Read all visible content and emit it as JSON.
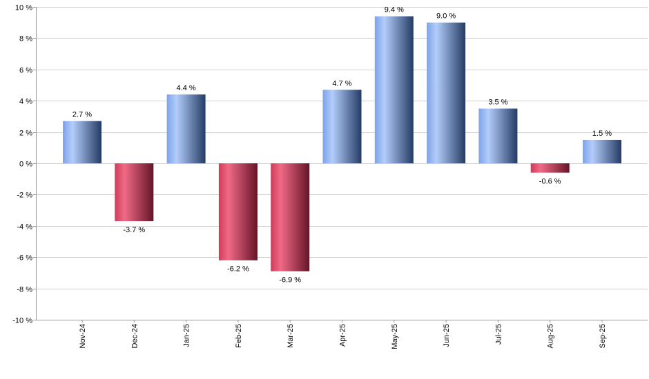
{
  "chart_data": {
    "type": "bar",
    "title": "",
    "xlabel": "",
    "ylabel": "",
    "categories": [
      "Nov-24",
      "Dec-24",
      "Jan-25",
      "Feb-25",
      "Mar-25",
      "Apr-25",
      "May-25",
      "Jun-25",
      "Jul-25",
      "Aug-25",
      "Sep-25"
    ],
    "values": [
      2.7,
      -3.7,
      4.4,
      -6.2,
      -6.9,
      4.7,
      9.4,
      9.0,
      3.5,
      -0.6,
      1.5
    ],
    "value_labels": [
      "2.7 %",
      "-3.7 %",
      "4.4 %",
      "-6.2 %",
      "-6.9 %",
      "4.7 %",
      "9.4 %",
      "9.0 %",
      "3.5 %",
      "-0.6 %",
      "1.5 %"
    ],
    "ylim": [
      -10,
      10
    ],
    "y_ticks": [
      10,
      8,
      6,
      4,
      2,
      0,
      -2,
      -4,
      -6,
      -8,
      -10
    ],
    "y_tick_labels": [
      "10 %",
      "8 %",
      "6 %",
      "4 %",
      "2 %",
      "0 %",
      "-2 %",
      "-4 %",
      "-6 %",
      "-8 %",
      "-10 %"
    ],
    "grid": true,
    "legend": "none",
    "colors": {
      "positive_light": "#a9c8ff",
      "positive_mid": "#6f95d8",
      "positive_dark": "#223a66",
      "negative_light": "#f26a86",
      "negative_mid": "#d6405e",
      "negative_dark": "#6a1428"
    }
  }
}
